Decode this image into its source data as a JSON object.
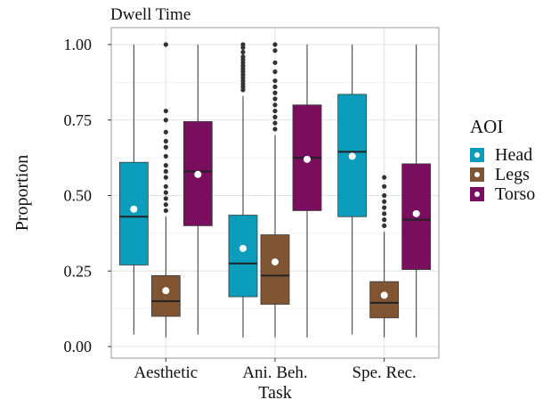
{
  "chart_data": {
    "type": "boxplot",
    "title": "Dwell Time",
    "xlabel": "Task",
    "ylabel": "Proportion",
    "ylim": [
      0,
      1
    ],
    "yticks": [
      "0.00",
      "0.25",
      "0.50",
      "0.75",
      "1.00"
    ],
    "categories": [
      "Aesthetic",
      "Ani. Beh.",
      "Spe. Rec."
    ],
    "grid": true,
    "legend": {
      "title": "AOI",
      "position": "right"
    },
    "series": [
      {
        "name": "Head",
        "color": "#0B9DBB",
        "boxes": [
          {
            "whisker_low": 0.04,
            "q1": 0.27,
            "median": 0.43,
            "q3": 0.61,
            "whisker_high": 1.0,
            "mean": 0.455,
            "outliers": []
          },
          {
            "whisker_low": 0.03,
            "q1": 0.165,
            "median": 0.275,
            "q3": 0.435,
            "whisker_high": 0.83,
            "mean": 0.325,
            "outliers": [
              0.85,
              0.86,
              0.87,
              0.88,
              0.89,
              0.9,
              0.91,
              0.92,
              0.93,
              0.94,
              0.95,
              0.96,
              0.975,
              0.99,
              1.0
            ]
          },
          {
            "whisker_low": 0.04,
            "q1": 0.43,
            "median": 0.645,
            "q3": 0.835,
            "whisker_high": 1.0,
            "mean": 0.63,
            "outliers": []
          }
        ]
      },
      {
        "name": "Legs",
        "color": "#7F5533",
        "boxes": [
          {
            "whisker_low": 0.03,
            "q1": 0.1,
            "median": 0.15,
            "q3": 0.235,
            "whisker_high": 0.43,
            "mean": 0.185,
            "outliers": [
              0.45,
              0.47,
              0.49,
              0.51,
              0.53,
              0.56,
              0.58,
              0.6,
              0.63,
              0.66,
              0.68,
              0.71,
              0.75,
              0.78,
              1.0
            ]
          },
          {
            "whisker_low": 0.03,
            "q1": 0.14,
            "median": 0.235,
            "q3": 0.37,
            "whisker_high": 0.7,
            "mean": 0.28,
            "outliers": [
              0.72,
              0.74,
              0.76,
              0.78,
              0.8,
              0.82,
              0.84,
              0.86,
              0.88,
              0.91,
              0.94,
              0.98,
              1.0
            ]
          },
          {
            "whisker_low": 0.03,
            "q1": 0.095,
            "median": 0.145,
            "q3": 0.215,
            "whisker_high": 0.38,
            "mean": 0.17,
            "outliers": [
              0.4,
              0.42,
              0.44,
              0.46,
              0.48,
              0.5,
              0.53,
              0.56
            ]
          }
        ]
      },
      {
        "name": "Torso",
        "color": "#7A0E5E",
        "boxes": [
          {
            "whisker_low": 0.04,
            "q1": 0.4,
            "median": 0.58,
            "q3": 0.745,
            "whisker_high": 1.0,
            "mean": 0.57,
            "outliers": []
          },
          {
            "whisker_low": 0.03,
            "q1": 0.45,
            "median": 0.625,
            "q3": 0.8,
            "whisker_high": 1.0,
            "mean": 0.62,
            "outliers": []
          },
          {
            "whisker_low": 0.03,
            "q1": 0.255,
            "median": 0.42,
            "q3": 0.605,
            "whisker_high": 1.0,
            "mean": 0.44,
            "outliers": []
          }
        ]
      }
    ]
  }
}
